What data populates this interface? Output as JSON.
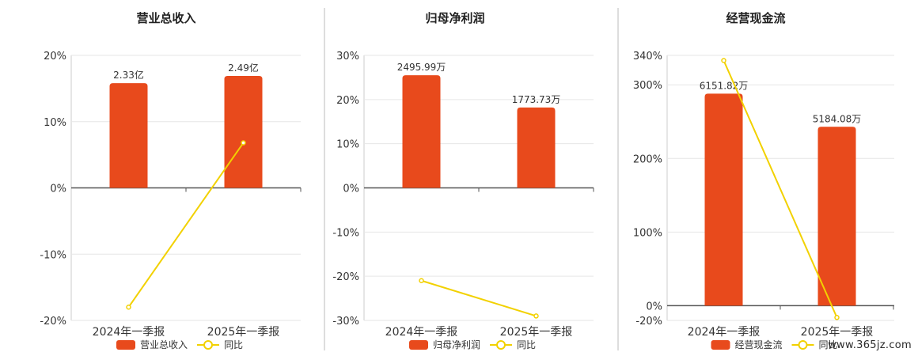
{
  "colors": {
    "bar": "#E84A1C",
    "line": "#F2D100",
    "divider": "#bbbbbb",
    "axis": "#555555",
    "grid": "#e6e6e6",
    "text": "#333333"
  },
  "legend": {
    "bar_icon": "rounded-rect",
    "line_icon": "circle-on-line"
  },
  "watermark": "www.365jz.com",
  "chart_data": [
    {
      "type": "bar",
      "title": "营业总收入",
      "categories": [
        "2024年一季报",
        "2025年一季报"
      ],
      "yaxis_ticks": [
        "20%",
        "10%",
        "0%",
        "-10%",
        "-20%"
      ],
      "ylim": [
        -20,
        20
      ],
      "tick_values": [
        20,
        10,
        0,
        -10,
        -20
      ],
      "series": [
        {
          "name": "营业总收入",
          "kind": "bar",
          "value_labels": [
            "2.33亿",
            "2.49亿"
          ],
          "values": [
            15.8,
            16.9
          ]
        },
        {
          "name": "同比",
          "kind": "line",
          "values": [
            -18.0,
            6.8
          ]
        }
      ],
      "legend_position": "bottom-center",
      "grid": true
    },
    {
      "type": "bar",
      "title": "归母净利润",
      "categories": [
        "2024年一季报",
        "2025年一季报"
      ],
      "yaxis_ticks": [
        "30%",
        "20%",
        "10%",
        "0%",
        "-10%",
        "-20%",
        "-30%"
      ],
      "ylim": [
        -30,
        30
      ],
      "tick_values": [
        30,
        20,
        10,
        0,
        -10,
        -20,
        -30
      ],
      "series": [
        {
          "name": "归母净利润",
          "kind": "bar",
          "value_labels": [
            "2495.99万",
            "1773.73万"
          ],
          "values": [
            25.5,
            18.2
          ]
        },
        {
          "name": "同比",
          "kind": "line",
          "values": [
            -21.0,
            -29.0
          ]
        }
      ],
      "legend_position": "bottom-center",
      "grid": true
    },
    {
      "type": "bar",
      "title": "经营现金流",
      "categories": [
        "2024年一季报",
        "2025年一季报"
      ],
      "yaxis_ticks": [
        "340%",
        "300%",
        "200%",
        "100%",
        "0%",
        "-20%"
      ],
      "ylim": [
        -20,
        340
      ],
      "tick_values": [
        340,
        300,
        200,
        100,
        0,
        -20
      ],
      "series": [
        {
          "name": "经营现金流",
          "kind": "bar",
          "value_labels": [
            "6151.82万",
            "5184.08万"
          ],
          "values": [
            288,
            243
          ]
        },
        {
          "name": "同比",
          "kind": "line",
          "values": [
            333,
            -16
          ]
        }
      ],
      "legend_position": "bottom-center",
      "grid": true
    }
  ]
}
